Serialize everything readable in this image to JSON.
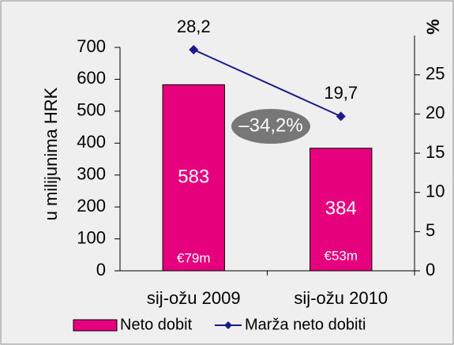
{
  "chart_data": {
    "type": "bar",
    "y_label": "u milijunima HRK",
    "y2_label": "%",
    "categories": [
      "sij-ožu 2009",
      "sij-ožu 2010"
    ],
    "series": [
      {
        "name": "Neto dobit",
        "type": "bar",
        "color": "#e6007e",
        "values": [
          583,
          384
        ]
      },
      {
        "name": "Marža neto dobiti",
        "type": "line",
        "axis": "y2",
        "color": "#1a1a8c",
        "values": [
          28.2,
          19.7
        ],
        "value_labels": [
          "28,2",
          "19,7"
        ]
      }
    ],
    "ylim": [
      0,
      700
    ],
    "yticks": [
      0,
      100,
      200,
      300,
      400,
      500,
      600,
      700
    ],
    "y2lim": [
      0,
      28.5
    ],
    "y2ticks": [
      0,
      5,
      10,
      15,
      20,
      25
    ],
    "annotations": [
      "–34,2%",
      "€79m",
      "€53m"
    ],
    "grid": false,
    "legend": "bottom"
  }
}
